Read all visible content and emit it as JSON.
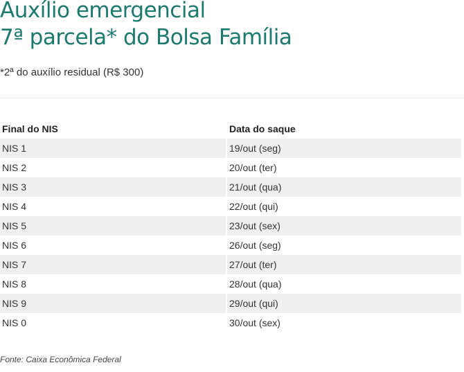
{
  "title_line1": "Auxílio emergencial",
  "title_line2": "7ª parcela* do Bolsa Família",
  "subtitle": "*2ª do auxílio residual (R$ 300)",
  "table": {
    "headers": [
      "Final do NIS",
      "Data do saque"
    ],
    "rows": [
      [
        "NIS 1",
        "19/out (seg)"
      ],
      [
        "NIS 2",
        "20/out (ter)"
      ],
      [
        "NIS 3",
        "21/out (qua)"
      ],
      [
        "NIS 4",
        "22/out (qui)"
      ],
      [
        "NIS 5",
        "23/out (sex)"
      ],
      [
        "NIS 6",
        "26/out (seg)"
      ],
      [
        "NIS 7",
        "27/out (ter)"
      ],
      [
        "NIS 8",
        "28/out (qua)"
      ],
      [
        "NIS 9",
        "29/out (qui)"
      ],
      [
        "NIS 0",
        "30/out (sex)"
      ]
    ]
  },
  "source": "Fonte: Caixa Econômica Federal",
  "colors": {
    "title": "#1b7a6f",
    "stripe": "#efefef"
  }
}
